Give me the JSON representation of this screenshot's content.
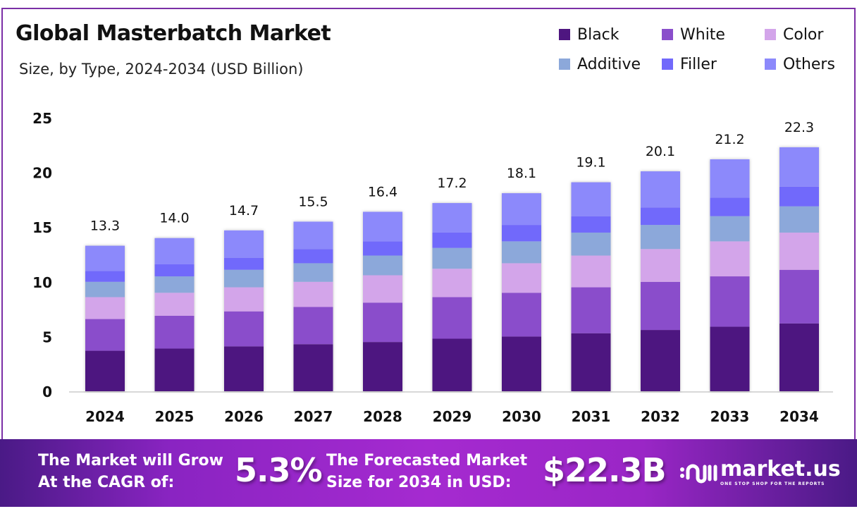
{
  "header": {
    "title": "Global Masterbatch Market",
    "subtitle": "Size, by Type, 2024-2034 (USD Billion)"
  },
  "chart_data": {
    "type": "bar",
    "stacked": true,
    "title": "Global Masterbatch Market",
    "subtitle": "Size, by Type, 2024-2034 (USD Billion)",
    "xlabel": "",
    "ylabel": "",
    "ylim": [
      0,
      25
    ],
    "yticks": [
      0,
      5,
      10,
      15,
      20,
      25
    ],
    "grid": false,
    "legend_position": "top-right",
    "categories": [
      "2024",
      "2025",
      "2026",
      "2027",
      "2028",
      "2029",
      "2030",
      "2031",
      "2032",
      "2033",
      "2034"
    ],
    "totals": [
      13.3,
      14.0,
      14.7,
      15.5,
      16.4,
      17.2,
      18.1,
      19.1,
      20.1,
      21.2,
      22.3
    ],
    "total_labels": [
      "13.3",
      "14.0",
      "14.7",
      "15.5",
      "16.4",
      "17.2",
      "18.1",
      "19.1",
      "20.1",
      "21.2",
      "22.3"
    ],
    "series": [
      {
        "name": "Black",
        "color": "#4e1680",
        "values": [
          3.7,
          3.9,
          4.1,
          4.3,
          4.5,
          4.8,
          5.0,
          5.3,
          5.6,
          5.9,
          6.2
        ]
      },
      {
        "name": "White",
        "color": "#8a4ecb",
        "values": [
          2.9,
          3.0,
          3.2,
          3.4,
          3.6,
          3.8,
          4.0,
          4.2,
          4.4,
          4.6,
          4.9
        ]
      },
      {
        "name": "Color",
        "color": "#d3a5ea",
        "values": [
          2.0,
          2.1,
          2.2,
          2.3,
          2.5,
          2.6,
          2.7,
          2.9,
          3.0,
          3.2,
          3.4
        ]
      },
      {
        "name": "Additive",
        "color": "#8ca8da",
        "values": [
          1.4,
          1.5,
          1.6,
          1.7,
          1.8,
          1.9,
          2.0,
          2.1,
          2.2,
          2.3,
          2.4
        ]
      },
      {
        "name": "Filler",
        "color": "#7169fb",
        "values": [
          1.0,
          1.1,
          1.1,
          1.3,
          1.3,
          1.4,
          1.5,
          1.5,
          1.6,
          1.7,
          1.8
        ]
      },
      {
        "name": "Others",
        "color": "#8c89fb",
        "values": [
          2.3,
          2.4,
          2.5,
          2.5,
          2.7,
          2.7,
          2.9,
          3.1,
          3.3,
          3.5,
          3.6
        ]
      }
    ]
  },
  "banner": {
    "cagr_label_line1": "The Market will Grow",
    "cagr_label_line2": "At the CAGR of:",
    "cagr_value": "5.3%",
    "forecast_label_line1": "The Forecasted Market",
    "forecast_label_line2": "Size for 2034 in USD:",
    "forecast_value": "$22.3B",
    "brand_name": "market.us",
    "brand_tagline": "ONE STOP SHOP FOR THE REPORTS"
  }
}
